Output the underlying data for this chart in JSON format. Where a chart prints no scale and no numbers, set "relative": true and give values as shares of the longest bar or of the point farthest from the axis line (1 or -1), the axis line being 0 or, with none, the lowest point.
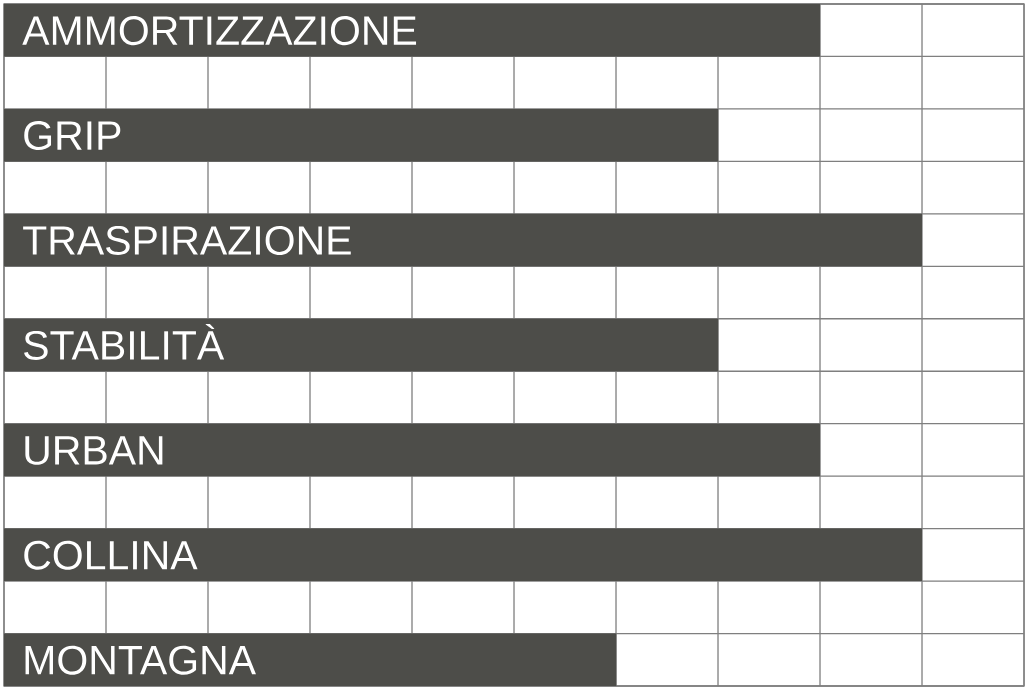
{
  "chart_data": {
    "type": "bar",
    "orientation": "horizontal",
    "relative": true,
    "categories": [
      "AMMORTIZZAZIONE",
      "GRIP",
      "TRASPIRAZIONE",
      "STABILITÀ",
      "URBAN",
      "COLLINA",
      "MONTAGNA"
    ],
    "values": [
      0.889,
      0.778,
      1,
      0.778,
      0.889,
      1,
      0.667
    ],
    "color": "#4d4d49",
    "grid": true
  }
}
